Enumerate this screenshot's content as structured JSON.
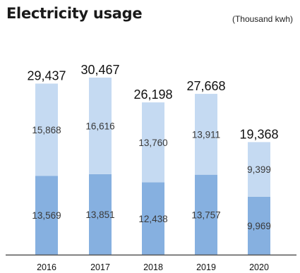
{
  "header": {
    "title": "Electricity usage",
    "unit": "(Thousand kwh)"
  },
  "colors": {
    "lower_segment": "#86b0e0",
    "upper_segment": "#c5daf2",
    "axis": "#555555"
  },
  "chart_data": {
    "type": "bar",
    "stacked": true,
    "categories": [
      "2016",
      "2017",
      "2018",
      "2019",
      "2020"
    ],
    "series": [
      {
        "values": [
          13569,
          13851,
          12438,
          13757,
          9969
        ],
        "labels": [
          "13,569",
          "13,851",
          "12,438",
          "13,757",
          "9,969"
        ]
      },
      {
        "values": [
          15868,
          16616,
          13760,
          13911,
          9399
        ],
        "labels": [
          "15,868",
          "16,616",
          "13,760",
          "13,911",
          "9,399"
        ]
      }
    ],
    "totals": [
      29437,
      30467,
      26198,
      27668,
      19368
    ],
    "total_labels": [
      "29,437",
      "30,467",
      "26,198",
      "27,668",
      "19,368"
    ],
    "title": "Electricity usage",
    "unit": "(Thousand kwh)",
    "xlabel": "",
    "ylabel": "",
    "grid": false
  }
}
